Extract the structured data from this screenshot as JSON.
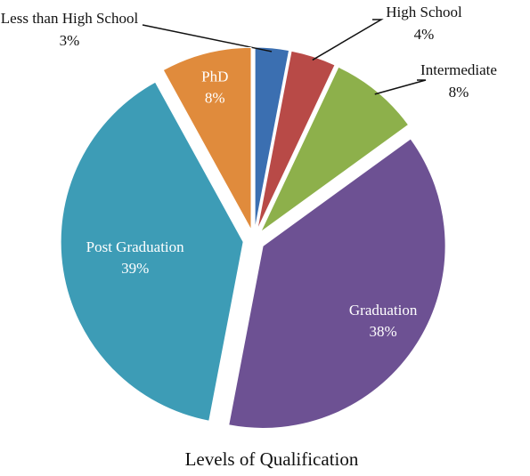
{
  "chart_data": {
    "type": "pie",
    "title": "Levels of Qualification",
    "categories": [
      "Less than High School",
      "High School",
      "Intermediate",
      "Graduation",
      "Post Graduation",
      "PhD"
    ],
    "values": [
      3,
      4,
      8,
      38,
      39,
      8
    ],
    "value_labels": [
      "3%",
      "4%",
      "8%",
      "38%",
      "39%",
      "8%"
    ],
    "colors": [
      "#3b6fb1",
      "#b84a47",
      "#8db04b",
      "#6d5193",
      "#3d9cb6",
      "#e08b3c"
    ]
  }
}
